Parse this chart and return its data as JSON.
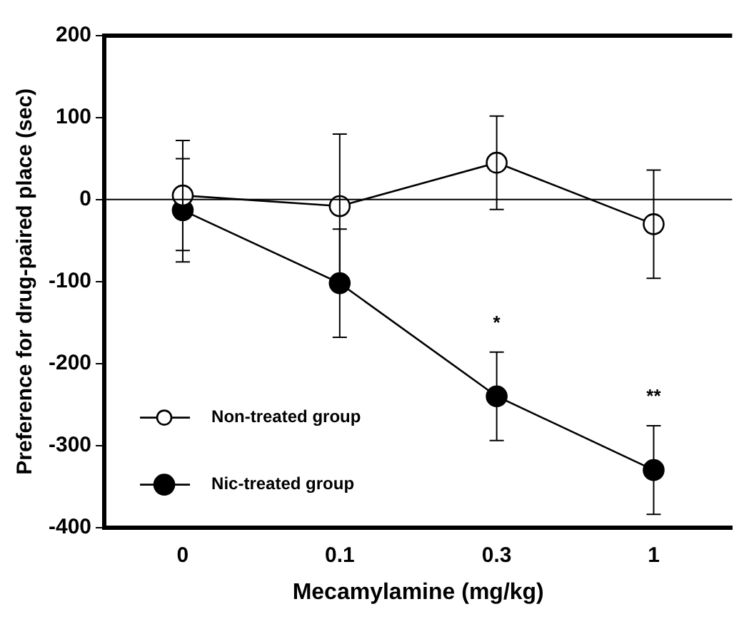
{
  "chart_data": {
    "type": "line",
    "xlabel": "Mecamylamine (mg/kg)",
    "ylabel": "Preference for drug-paired place (sec)",
    "categories": [
      "0",
      "0.1",
      "0.3",
      "1"
    ],
    "series": [
      {
        "name": "Non-treated group",
        "color": "#ffffff",
        "values": [
          5,
          -8,
          45,
          -30
        ],
        "errors": [
          67,
          88,
          57,
          66
        ]
      },
      {
        "name": "Nic-treated group",
        "color": "#000000",
        "values": [
          -13,
          -102,
          -240,
          -330
        ],
        "errors": [
          63,
          66,
          54,
          54
        ]
      }
    ],
    "ylim": [
      -400,
      200
    ],
    "yticks": [
      -400,
      -300,
      -200,
      -100,
      0,
      100,
      200
    ],
    "ref_lines": [
      {
        "axis": "y",
        "value": 0
      }
    ],
    "annotations": [
      "*",
      "**"
    ],
    "legend": "bottom left",
    "marker": "circle",
    "grid": false
  }
}
